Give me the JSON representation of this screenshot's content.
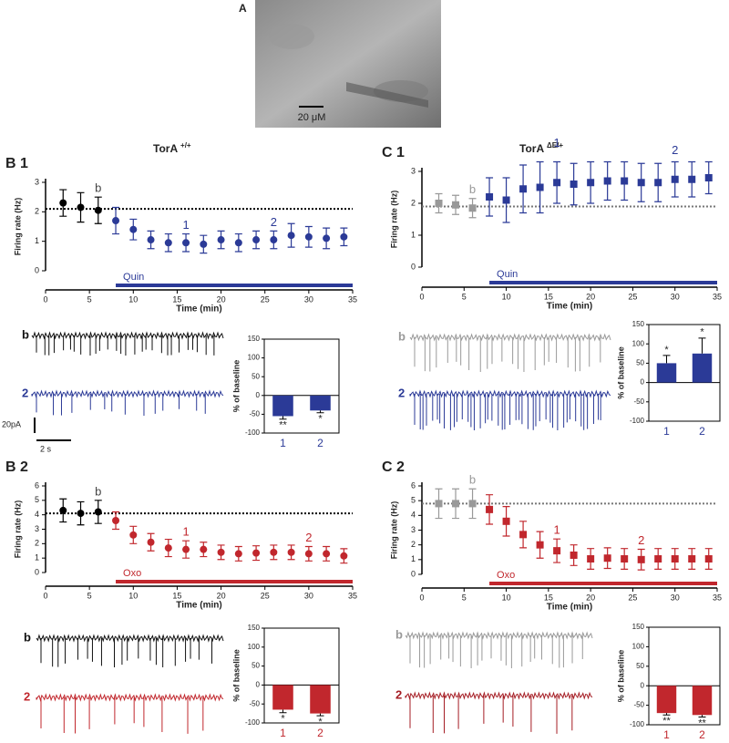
{
  "panel_a": {
    "label": "A",
    "scale_bar": "20 μM"
  },
  "genotypes": [
    {
      "name": "TorA",
      "superscript": "+/+"
    },
    {
      "name": "TorA",
      "superscript": "ΔE/+"
    }
  ],
  "traces": [
    {
      "labels": [
        "b",
        "2"
      ],
      "scale_current": "20pA",
      "scale_time": "2 s"
    },
    {
      "labels": [
        "b",
        "2"
      ]
    },
    {
      "labels": [
        "b",
        "2"
      ]
    },
    {
      "labels": [
        "b",
        "2"
      ]
    }
  ],
  "chart_data": [
    {
      "type": "scatter",
      "panel": "B 1",
      "ylabel": "Firing rate (Hz)",
      "xlabel": "Time (min)",
      "xlim": [
        0,
        35
      ],
      "xticks": [
        0,
        5,
        10,
        15,
        20,
        25,
        30,
        35
      ],
      "ylim": [
        0,
        3
      ],
      "yticks": [
        0,
        1,
        2,
        3
      ],
      "baseline": 2.1,
      "drug": {
        "label": "Quin",
        "start": 8,
        "end": 35,
        "color": "#2b3a97"
      },
      "annotations": [
        "b",
        "1",
        "2"
      ],
      "series": [
        {
          "color": "#000000",
          "x": [
            2,
            4,
            6
          ],
          "values": [
            2.3,
            2.15,
            2.05
          ],
          "errors": [
            0.45,
            0.5,
            0.45
          ]
        },
        {
          "color": "#2b3a97",
          "x": [
            8,
            10,
            12,
            14,
            16,
            18,
            20,
            22,
            24,
            26,
            28,
            30,
            32,
            34
          ],
          "values": [
            1.7,
            1.4,
            1.05,
            0.95,
            0.95,
            0.9,
            1.05,
            0.95,
            1.05,
            1.05,
            1.2,
            1.15,
            1.1,
            1.15
          ],
          "errors": [
            0.45,
            0.35,
            0.3,
            0.3,
            0.3,
            0.3,
            0.3,
            0.3,
            0.3,
            0.3,
            0.4,
            0.35,
            0.35,
            0.3
          ]
        }
      ]
    },
    {
      "type": "bar",
      "ylabel": "% of baseline",
      "categories": [
        "1",
        "2"
      ],
      "values": [
        -55,
        -40
      ],
      "errors": [
        8,
        6
      ],
      "significance": [
        "**",
        "*"
      ],
      "color": "#2b3a97",
      "ylim": [
        -100,
        150
      ],
      "yticks": [
        -100,
        -50,
        0,
        50,
        100,
        150
      ]
    },
    {
      "type": "scatter",
      "panel": "C 1",
      "ylabel": "Firing rate (Hz)",
      "xlabel": "Time (min)",
      "xlim": [
        0,
        35
      ],
      "xticks": [
        0,
        5,
        10,
        15,
        20,
        25,
        30,
        35
      ],
      "ylim": [
        0,
        3
      ],
      "yticks": [
        0,
        1,
        2,
        3
      ],
      "baseline": 1.9,
      "drug": {
        "label": "Quin",
        "start": 8,
        "end": 35,
        "color": "#2b3a97"
      },
      "annotations": [
        "b",
        "1",
        "2"
      ],
      "series": [
        {
          "color": "#999999",
          "x": [
            2,
            4,
            6
          ],
          "values": [
            2.0,
            1.95,
            1.85
          ],
          "errors": [
            0.3,
            0.3,
            0.3
          ]
        },
        {
          "color": "#2b3a97",
          "x": [
            8,
            10,
            12,
            14,
            16,
            18,
            20,
            22,
            24,
            26,
            28,
            30,
            32,
            34
          ],
          "values": [
            2.2,
            2.1,
            2.45,
            2.5,
            2.65,
            2.6,
            2.65,
            2.7,
            2.7,
            2.65,
            2.65,
            2.75,
            2.75,
            2.8
          ],
          "errors": [
            0.6,
            0.7,
            0.75,
            0.8,
            0.65,
            0.65,
            0.65,
            0.6,
            0.6,
            0.6,
            0.6,
            0.55,
            0.55,
            0.5
          ]
        }
      ]
    },
    {
      "type": "bar",
      "ylabel": "% of baseline",
      "categories": [
        "1",
        "2"
      ],
      "values": [
        50,
        75
      ],
      "errors": [
        20,
        40
      ],
      "significance": [
        "*",
        "*"
      ],
      "color": "#2b3a97",
      "ylim": [
        -100,
        150
      ],
      "yticks": [
        -100,
        -50,
        0,
        50,
        100,
        150
      ]
    },
    {
      "type": "scatter",
      "panel": "B 2",
      "ylabel": "Firing rate (Hz)",
      "xlabel": "Time (min)",
      "xlim": [
        0,
        35
      ],
      "xticks": [
        0,
        5,
        10,
        15,
        20,
        25,
        30,
        35
      ],
      "ylim": [
        0,
        6
      ],
      "yticks": [
        0,
        1,
        2,
        3,
        4,
        5,
        6
      ],
      "baseline": 4.1,
      "drug": {
        "label": "Oxo",
        "start": 8,
        "end": 35,
        "color": "#c1272d"
      },
      "annotations": [
        "b",
        "1",
        "2"
      ],
      "series": [
        {
          "color": "#000000",
          "x": [
            2,
            4,
            6
          ],
          "values": [
            4.3,
            4.1,
            4.2
          ],
          "errors": [
            0.8,
            0.8,
            0.8
          ]
        },
        {
          "color": "#c1272d",
          "x": [
            8,
            10,
            12,
            14,
            16,
            18,
            20,
            22,
            24,
            26,
            28,
            30,
            32,
            34
          ],
          "values": [
            3.6,
            2.6,
            2.1,
            1.7,
            1.6,
            1.6,
            1.4,
            1.3,
            1.35,
            1.4,
            1.4,
            1.3,
            1.3,
            1.15
          ],
          "errors": [
            0.6,
            0.6,
            0.6,
            0.6,
            0.6,
            0.5,
            0.5,
            0.5,
            0.5,
            0.5,
            0.5,
            0.5,
            0.5,
            0.5
          ]
        }
      ]
    },
    {
      "type": "bar",
      "ylabel": "% of baseline",
      "categories": [
        "1",
        "2"
      ],
      "values": [
        -65,
        -75
      ],
      "errors": [
        8,
        6
      ],
      "significance": [
        "*",
        "*"
      ],
      "color": "#c1272d",
      "ylim": [
        -100,
        150
      ],
      "yticks": [
        -100,
        -50,
        0,
        50,
        100,
        150
      ]
    },
    {
      "type": "scatter",
      "panel": "C 2",
      "ylabel": "Firing rate (Hz)",
      "xlabel": "Time (min)",
      "xlim": [
        0,
        35
      ],
      "xticks": [
        0,
        5,
        10,
        15,
        20,
        25,
        30,
        35
      ],
      "ylim": [
        0,
        6
      ],
      "yticks": [
        0,
        1,
        2,
        3,
        4,
        5,
        6
      ],
      "baseline": 4.8,
      "drug": {
        "label": "Oxo",
        "start": 8,
        "end": 35,
        "color": "#c1272d"
      },
      "annotations": [
        "b",
        "1",
        "2"
      ],
      "series": [
        {
          "color": "#999999",
          "x": [
            2,
            4,
            6
          ],
          "values": [
            4.8,
            4.8,
            4.8
          ],
          "errors": [
            1.0,
            1.0,
            1.0
          ]
        },
        {
          "color": "#c1272d",
          "x": [
            8,
            10,
            12,
            14,
            16,
            18,
            20,
            22,
            24,
            26,
            28,
            30,
            32,
            34
          ],
          "values": [
            4.4,
            3.6,
            2.7,
            2.0,
            1.6,
            1.3,
            1.05,
            1.1,
            1.05,
            1.0,
            1.05,
            1.05,
            1.05,
            1.05
          ],
          "errors": [
            1.0,
            1.0,
            0.9,
            0.9,
            0.8,
            0.7,
            0.7,
            0.7,
            0.7,
            0.7,
            0.7,
            0.7,
            0.7,
            0.7
          ]
        }
      ]
    },
    {
      "type": "bar",
      "ylabel": "% of baseline",
      "categories": [
        "1",
        "2"
      ],
      "values": [
        -70,
        -75
      ],
      "errors": [
        5,
        5
      ],
      "significance": [
        "**",
        "**"
      ],
      "color": "#c1272d",
      "ylim": [
        -100,
        150
      ],
      "yticks": [
        -100,
        -50,
        0,
        50,
        100,
        150
      ]
    }
  ]
}
